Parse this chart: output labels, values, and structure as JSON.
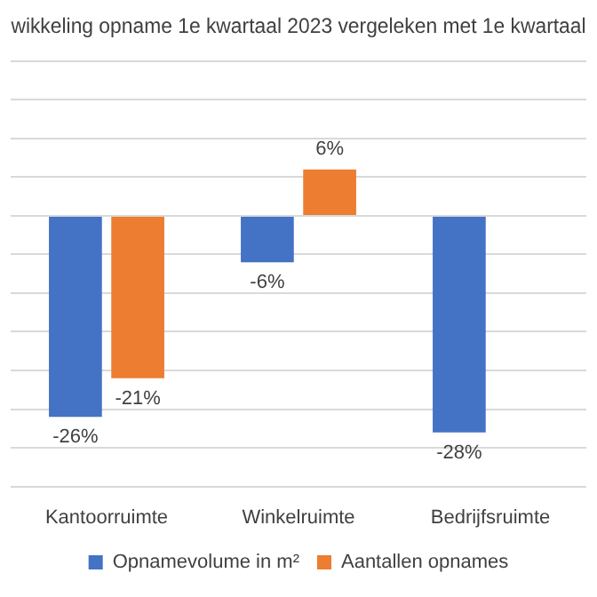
{
  "chart_data": {
    "type": "bar",
    "title": "wikkeling opname 1e kwartaal 2023 vergeleken met 1e kwartaal",
    "categories": [
      "Kantoorruimte",
      "Winkelruimte",
      "Bedrijfsruimte"
    ],
    "series": [
      {
        "name": "Opnamevolume in m²",
        "color": "#4472c4",
        "values": [
          -26,
          -6,
          -28
        ],
        "value_labels": [
          "-26%",
          "-6%",
          "-28%"
        ]
      },
      {
        "name": "Aantallen opnames",
        "color": "#ed7d31",
        "values": [
          -21,
          6,
          null
        ],
        "value_labels": [
          "-21%",
          "6%",
          null
        ]
      }
    ],
    "ylim": [
      -35,
      20
    ],
    "yticks": [
      {
        "value": -35,
        "label": null
      },
      {
        "value": -30,
        "label": null
      },
      {
        "value": -25,
        "label": null
      },
      {
        "value": -20,
        "label": null
      },
      {
        "value": -15,
        "label": null
      },
      {
        "value": -10,
        "label": null
      },
      {
        "value": -5,
        "label": null
      },
      {
        "value": 0,
        "label": null
      },
      {
        "value": 5,
        "label": null
      },
      {
        "value": 10,
        "label": null
      },
      {
        "value": 15,
        "label": null
      },
      {
        "value": 20,
        "label": null
      }
    ],
    "tick_labels": "x",
    "grid": "y",
    "legend": "bottom"
  }
}
